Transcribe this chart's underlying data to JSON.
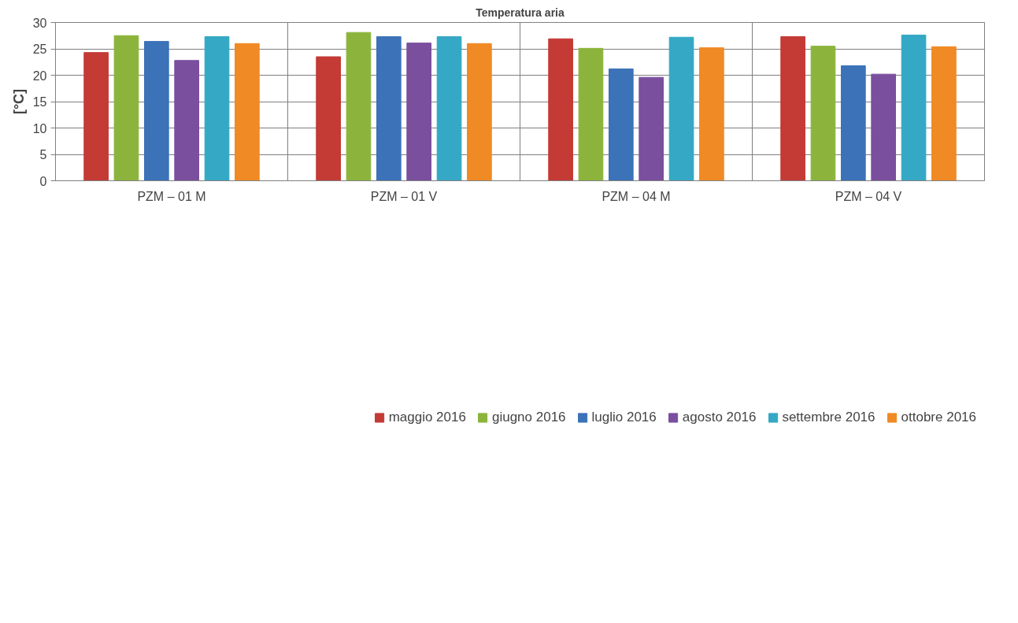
{
  "chart_data": {
    "type": "bar",
    "title": "Temperatura aria",
    "ylabel": "[°C]",
    "categories": [
      "PZM – 01 M",
      "PZM – 01 V",
      "PZM – 04 M",
      "PZM – 04 V"
    ],
    "series": [
      {
        "name": "maggio 2016",
        "color": "#c43a35",
        "values": [
          24.3,
          23.5,
          26.9,
          27.3
        ]
      },
      {
        "name": "giugno 2016",
        "color": "#8cb43c",
        "values": [
          27.5,
          28.1,
          25.1,
          25.5
        ]
      },
      {
        "name": "luglio 2016",
        "color": "#3c72b8",
        "values": [
          26.4,
          27.3,
          21.2,
          21.8
        ]
      },
      {
        "name": "agosto 2016",
        "color": "#7a4f9e",
        "values": [
          22.8,
          26.1,
          19.6,
          20.2
        ]
      },
      {
        "name": "settembre 2016",
        "color": "#34a8c4",
        "values": [
          27.3,
          27.3,
          27.2,
          27.6
        ]
      },
      {
        "name": "ottobre 2016",
        "color": "#f08a24",
        "values": [
          26.0,
          26.0,
          25.2,
          25.4
        ]
      }
    ],
    "ylim": [
      0,
      30
    ],
    "yticks": [
      0,
      5,
      10,
      15,
      20,
      25,
      30
    ],
    "grid": true,
    "legend": "bottom"
  }
}
